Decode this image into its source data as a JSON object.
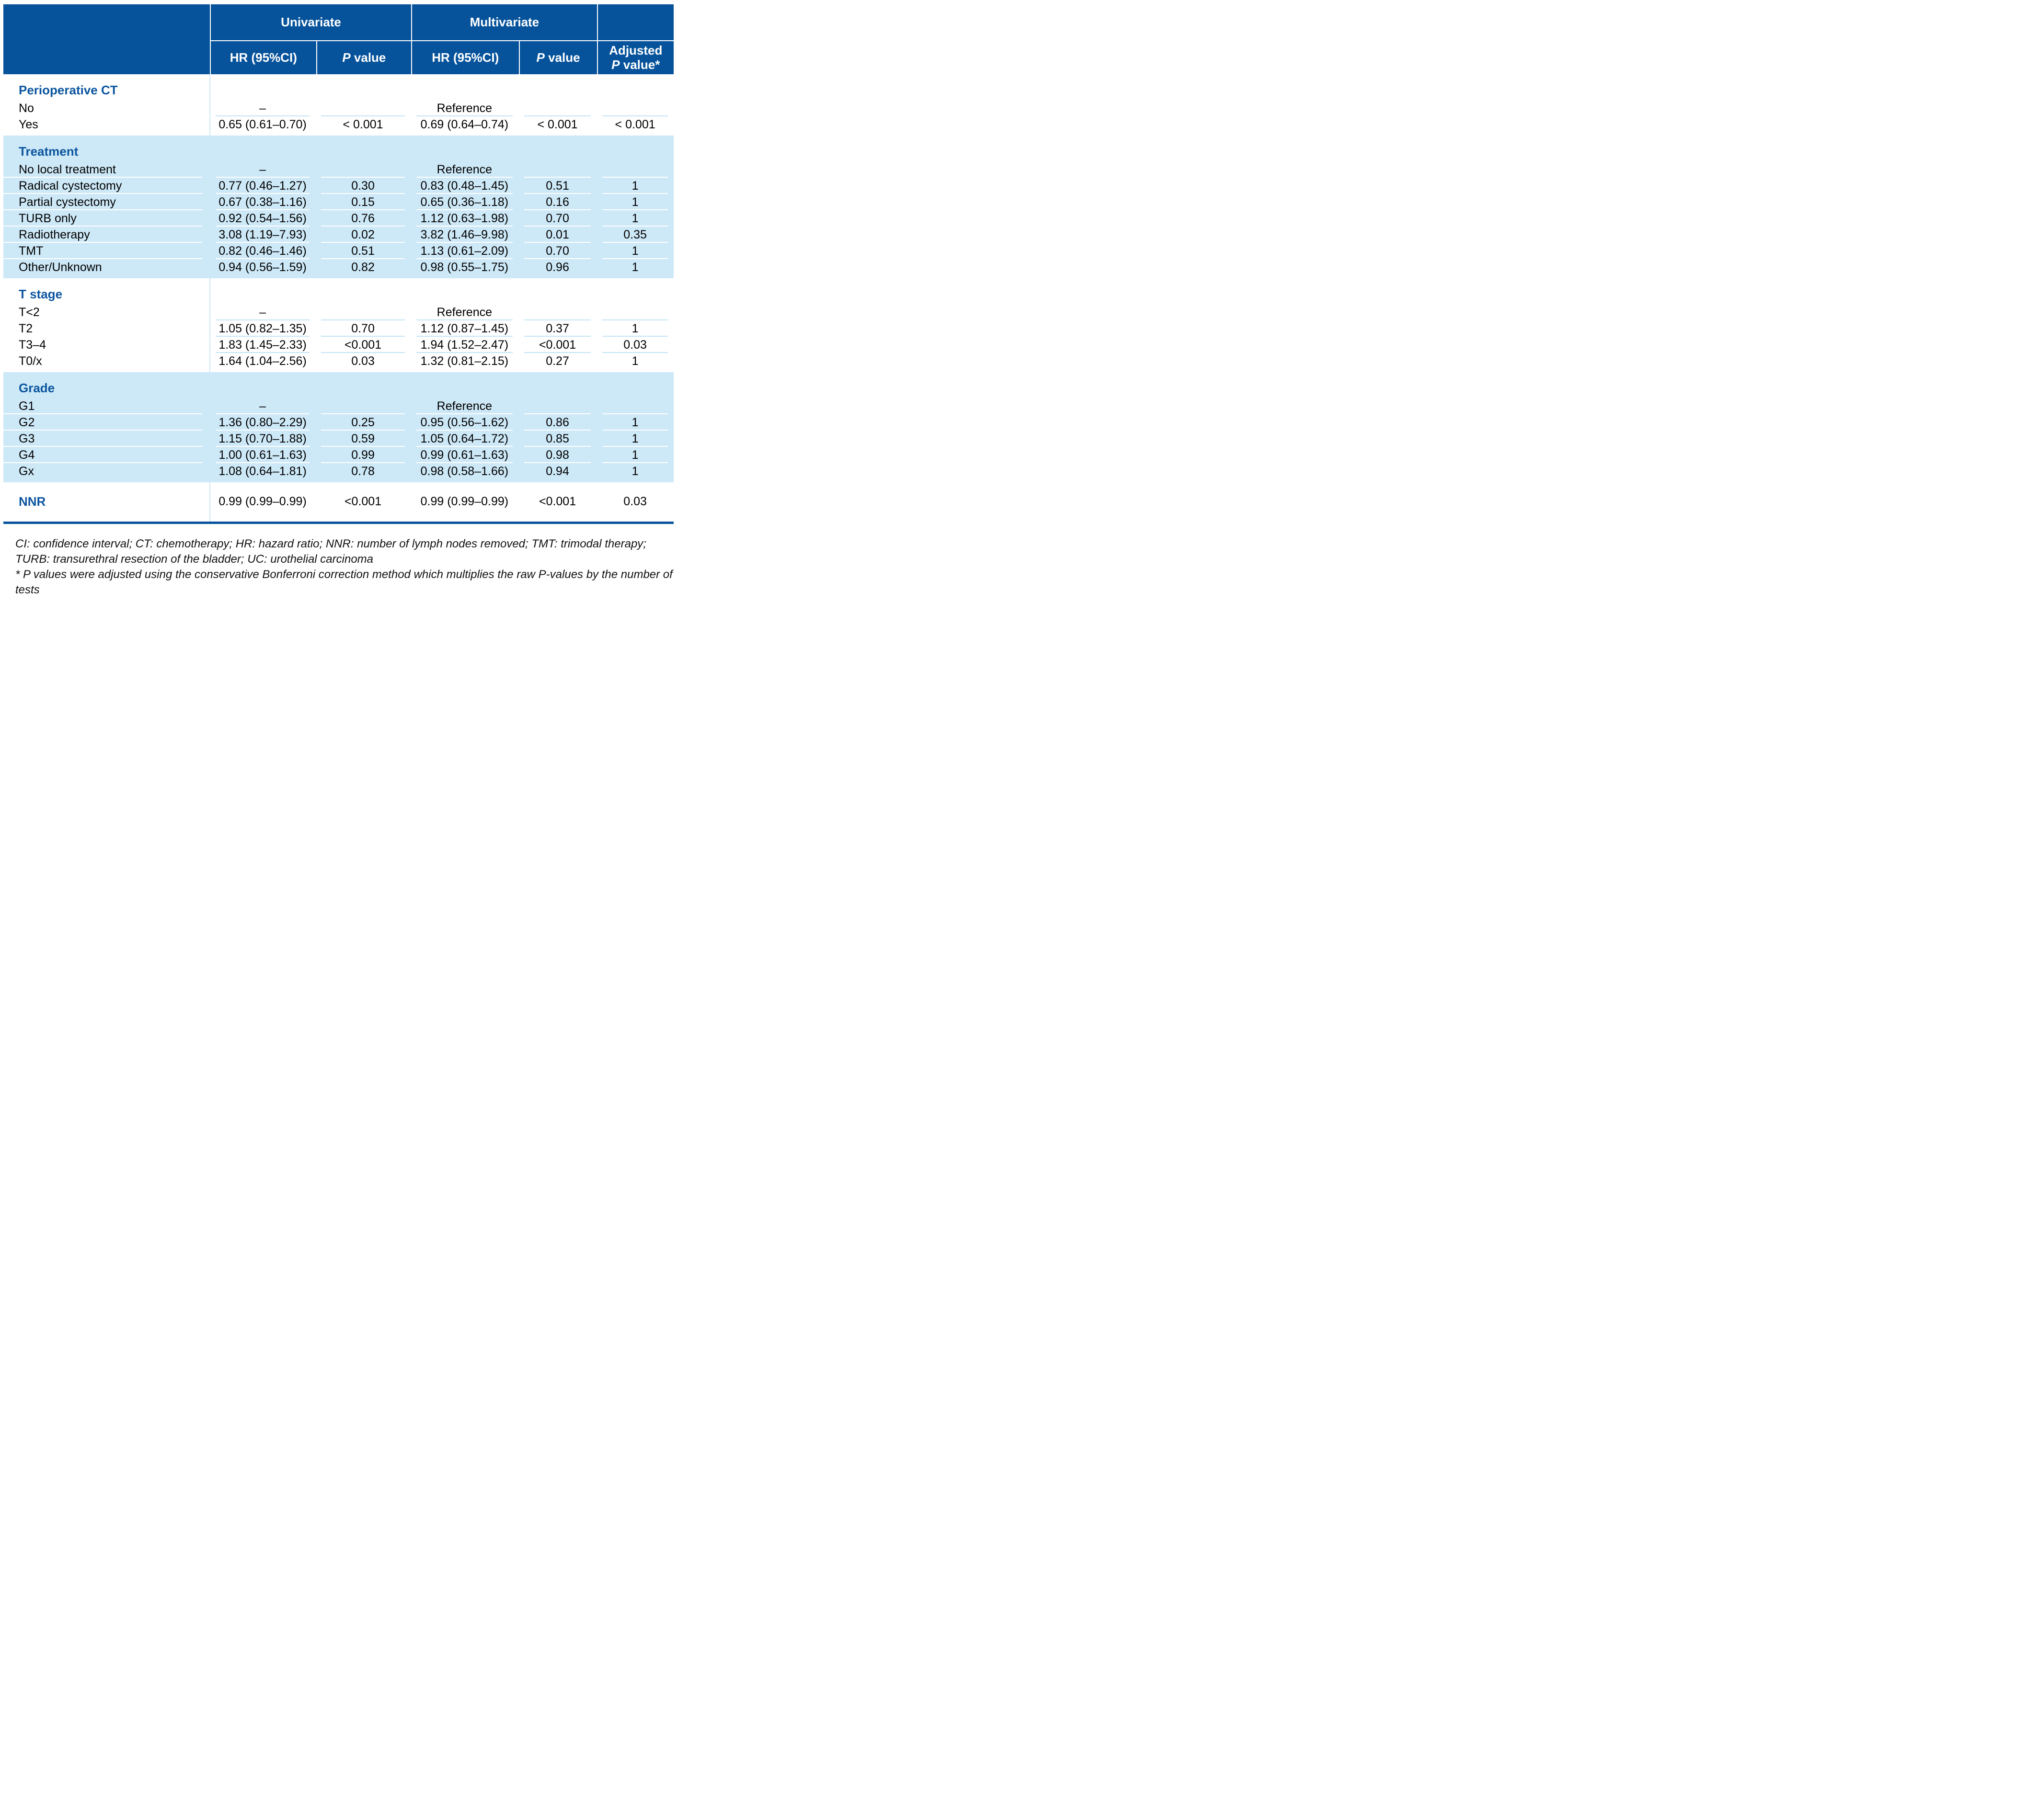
{
  "colors": {
    "header_blue": "#06539b",
    "band_light_blue": "#cde8f7",
    "section_title_blue": "#0b559f",
    "rule_light_blue": "#c3e4f5",
    "bottom_bar_blue": "#06539b"
  },
  "header": {
    "group_univariate": "Univariate",
    "group_multivariate": "Multivariate",
    "hr_ci": "HR (95%CI)",
    "p_italic": "P",
    "p_rest": " value",
    "adjusted_line1": "Adjusted",
    "adjusted_p_italic": "P",
    "adjusted_p_rest": " value*"
  },
  "sections": [
    {
      "title": "Perioperative CT",
      "style": "white",
      "rows": [
        {
          "label": "No",
          "uni_hr": "–",
          "uni_p": "",
          "multi_hr": "Reference",
          "multi_p": "",
          "adj": ""
        },
        {
          "label": "Yes",
          "uni_hr": "0.65 (0.61–0.70)",
          "uni_p": "< 0.001",
          "multi_hr": "0.69 (0.64–0.74)",
          "multi_p": "< 0.001",
          "adj": "< 0.001"
        }
      ]
    },
    {
      "title": "Treatment",
      "style": "blue",
      "rows": [
        {
          "label": "No local treatment",
          "uni_hr": "–",
          "uni_p": "",
          "multi_hr": "Reference",
          "multi_p": "",
          "adj": ""
        },
        {
          "label": "Radical cystectomy",
          "uni_hr": "0.77 (0.46–1.27)",
          "uni_p": "0.30",
          "multi_hr": "0.83 (0.48–1.45)",
          "multi_p": "0.51",
          "adj": "1"
        },
        {
          "label": "Partial cystectomy",
          "uni_hr": "0.67 (0.38–1.16)",
          "uni_p": "0.15",
          "multi_hr": "0.65 (0.36–1.18)",
          "multi_p": "0.16",
          "adj": "1"
        },
        {
          "label": "TURB only",
          "uni_hr": "0.92 (0.54–1.56)",
          "uni_p": "0.76",
          "multi_hr": "1.12 (0.63–1.98)",
          "multi_p": "0.70",
          "adj": "1"
        },
        {
          "label": "Radiotherapy",
          "uni_hr": "3.08 (1.19–7.93)",
          "uni_p": "0.02",
          "multi_hr": "3.82 (1.46–9.98)",
          "multi_p": "0.01",
          "adj": "0.35"
        },
        {
          "label": "TMT",
          "uni_hr": "0.82 (0.46–1.46)",
          "uni_p": "0.51",
          "multi_hr": "1.13 (0.61–2.09)",
          "multi_p": "0.70",
          "adj": "1"
        },
        {
          "label": "Other/Unknown",
          "uni_hr": "0.94 (0.56–1.59)",
          "uni_p": "0.82",
          "multi_hr": "0.98 (0.55–1.75)",
          "multi_p": "0.96",
          "adj": "1"
        }
      ]
    },
    {
      "title": "T stage",
      "style": "white",
      "rows": [
        {
          "label": "T<2",
          "uni_hr": "–",
          "uni_p": "",
          "multi_hr": "Reference",
          "multi_p": "",
          "adj": ""
        },
        {
          "label": "T2",
          "uni_hr": "1.05 (0.82–1.35)",
          "uni_p": "0.70",
          "multi_hr": "1.12 (0.87–1.45)",
          "multi_p": "0.37",
          "adj": "1"
        },
        {
          "label": "T3–4",
          "uni_hr": "1.83 (1.45–2.33)",
          "uni_p": "<0.001",
          "multi_hr": "1.94 (1.52–2.47)",
          "multi_p": "<0.001",
          "adj": "0.03"
        },
        {
          "label": "T0/x",
          "uni_hr": "1.64 (1.04–2.56)",
          "uni_p": "0.03",
          "multi_hr": "1.32 (0.81–2.15)",
          "multi_p": "0.27",
          "adj": "1"
        }
      ]
    },
    {
      "title": "Grade",
      "style": "blue",
      "rows": [
        {
          "label": "G1",
          "uni_hr": "–",
          "uni_p": "",
          "multi_hr": "Reference",
          "multi_p": "",
          "adj": ""
        },
        {
          "label": "G2",
          "uni_hr": "1.36 (0.80–2.29)",
          "uni_p": "0.25",
          "multi_hr": "0.95 (0.56–1.62)",
          "multi_p": "0.86",
          "adj": "1"
        },
        {
          "label": "G3",
          "uni_hr": "1.15 (0.70–1.88)",
          "uni_p": "0.59",
          "multi_hr": "1.05 (0.64–1.72)",
          "multi_p": "0.85",
          "adj": "1"
        },
        {
          "label": "G4",
          "uni_hr": "1.00 (0.61–1.63)",
          "uni_p": "0.99",
          "multi_hr": "0.99 (0.61–1.63)",
          "multi_p": "0.98",
          "adj": "1"
        },
        {
          "label": "Gx",
          "uni_hr": "1.08 (0.64–1.81)",
          "uni_p": "0.78",
          "multi_hr": "0.98 (0.58–1.66)",
          "multi_p": "0.94",
          "adj": "1"
        }
      ]
    }
  ],
  "nnr": {
    "label": "NNR",
    "uni_hr": "0.99 (0.99–0.99)",
    "uni_p": "<0.001",
    "multi_hr": "0.99 (0.99–0.99)",
    "multi_p": "<0.001",
    "adj": "0.03"
  },
  "footnotes": {
    "line1": "CI: confidence interval; CT: chemotherapy; HR: hazard ratio; NNR: number of lymph nodes removed; TMT: trimodal therapy;",
    "line2": "TURB: transurethral resection of the bladder; UC: urothelial carcinoma",
    "line3": "* P values were adjusted using the conservative Bonferroni correction method which multiplies the raw P-values by the number of tests"
  }
}
